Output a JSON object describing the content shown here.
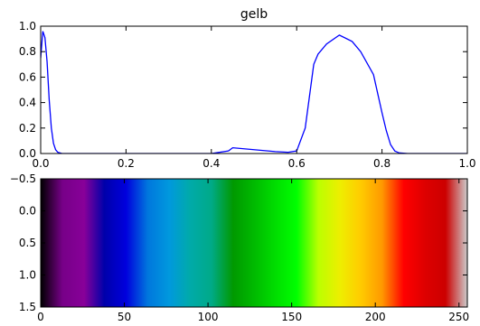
{
  "chart_data": [
    {
      "type": "line",
      "title": "gelb",
      "xlabel": "",
      "ylabel": "",
      "xlim": [
        0.0,
        1.0
      ],
      "ylim": [
        0.0,
        1.0
      ],
      "grid": false,
      "x_ticks": [
        "0.0",
        "0.2",
        "0.4",
        "0.6",
        "0.8",
        "1.0"
      ],
      "y_ticks": [
        "0.0",
        "0.2",
        "0.4",
        "0.6",
        "0.8",
        "1.0"
      ],
      "line_color": "#0000ff",
      "series": [
        {
          "x": [
            0.0,
            0.005,
            0.01,
            0.015,
            0.02,
            0.025,
            0.03,
            0.035,
            0.04,
            0.05,
            0.06,
            0.08,
            0.1,
            0.2,
            0.3,
            0.4,
            0.44,
            0.45,
            0.5,
            0.55,
            0.58,
            0.6,
            0.62,
            0.63,
            0.64,
            0.65,
            0.67,
            0.7,
            0.73,
            0.75,
            0.78,
            0.8,
            0.81,
            0.82,
            0.83,
            0.84,
            0.86,
            0.9,
            0.95,
            1.0
          ],
          "y": [
            0.75,
            0.96,
            0.91,
            0.72,
            0.42,
            0.2,
            0.08,
            0.03,
            0.01,
            0.0,
            0.0,
            0.0,
            0.0,
            0.0,
            0.0,
            0.0,
            0.02,
            0.045,
            0.03,
            0.015,
            0.01,
            0.02,
            0.2,
            0.45,
            0.7,
            0.78,
            0.86,
            0.93,
            0.88,
            0.8,
            0.62,
            0.32,
            0.18,
            0.07,
            0.02,
            0.005,
            0.0,
            0.0,
            0.0,
            0.0
          ]
        }
      ]
    },
    {
      "type": "heatmap",
      "title": "",
      "colormap": "nipy_spectral",
      "xlim": [
        0,
        255
      ],
      "ylim": [
        1.5,
        -0.5
      ],
      "x_ticks": [
        "0",
        "50",
        "100",
        "150",
        "200",
        "250"
      ],
      "y_ticks": [
        "−0.5",
        "0.0",
        "0.5",
        "1.0",
        "1.5"
      ],
      "color_stops": [
        {
          "value": 0,
          "color": "#000000"
        },
        {
          "value": 13,
          "color": "#770088"
        },
        {
          "value": 26,
          "color": "#880099"
        },
        {
          "value": 38,
          "color": "#0000aa"
        },
        {
          "value": 51,
          "color": "#0000dd"
        },
        {
          "value": 64,
          "color": "#0077dd"
        },
        {
          "value": 77,
          "color": "#0099dd"
        },
        {
          "value": 89,
          "color": "#00aaaa"
        },
        {
          "value": 102,
          "color": "#00aa88"
        },
        {
          "value": 115,
          "color": "#009900"
        },
        {
          "value": 128,
          "color": "#00bb00"
        },
        {
          "value": 140,
          "color": "#00dd00"
        },
        {
          "value": 153,
          "color": "#00ff00"
        },
        {
          "value": 166,
          "color": "#bbff00"
        },
        {
          "value": 179,
          "color": "#eeee00"
        },
        {
          "value": 191,
          "color": "#ffcc00"
        },
        {
          "value": 204,
          "color": "#ff9900"
        },
        {
          "value": 217,
          "color": "#ff0000"
        },
        {
          "value": 230,
          "color": "#dd0000"
        },
        {
          "value": 242,
          "color": "#cc0000"
        },
        {
          "value": 255,
          "color": "#cccccc"
        }
      ]
    }
  ]
}
